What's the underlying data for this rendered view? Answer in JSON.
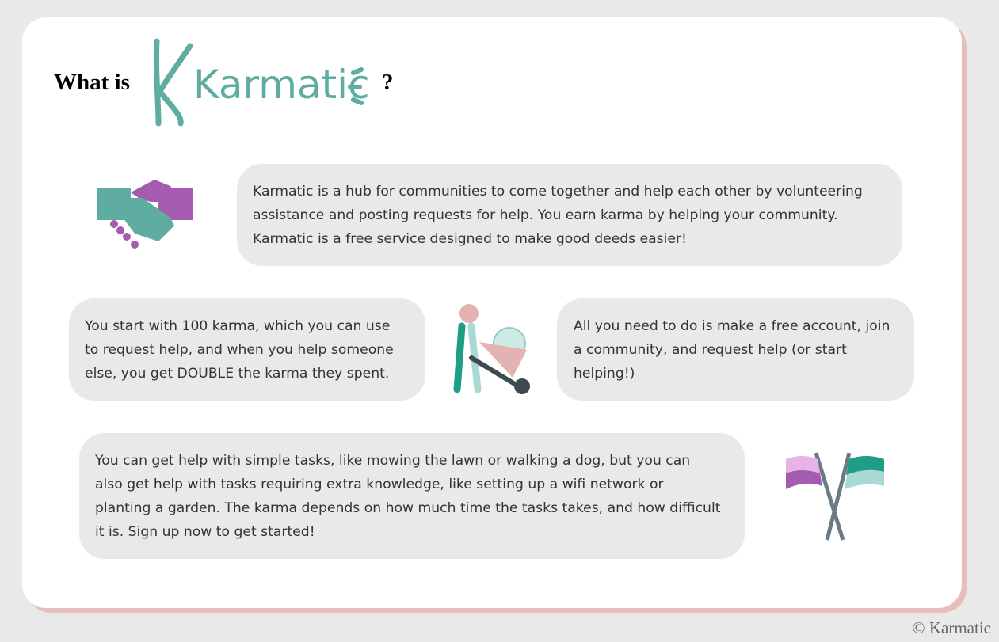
{
  "header": {
    "title": "What is",
    "logo": "Karmatic",
    "question_mark": "?"
  },
  "sections": [
    {
      "lines": [
        "Karmatic is a hub for communities to come together and help each other by volunteering",
        "assistance and posting requests for help. You earn karma by helping your community.",
        "Karmatic is a free service designed to make good deeds easier!"
      ]
    },
    {
      "lines": [
        "You start with 100 karma, which you can use",
        "to request help, and when you help someone",
        "else, you get DOUBLE the karma they spent."
      ]
    },
    {
      "lines": [
        "All you need to do is make a free account, join",
        "a community, and request help (or start",
        "helping!)"
      ]
    },
    {
      "lines": [
        "You can get help with simple tasks, like mowing the lawn or walking a dog, but you can",
        "also get help with tasks requiring extra knowledge, like setting up a wifi network or",
        "planting a garden. The karma depends on how much time the tasks takes, and how difficult",
        "it is. Sign up now to get started!"
      ]
    }
  ],
  "footer": "© Karmatic"
}
